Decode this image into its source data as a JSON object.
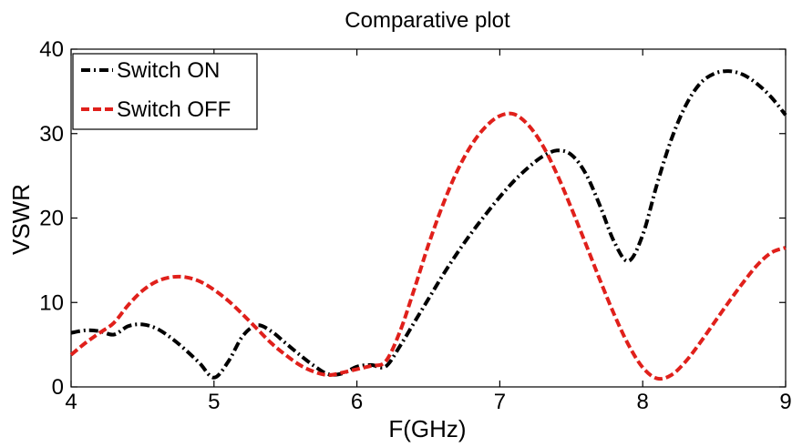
{
  "chart_data": {
    "type": "line",
    "title": "Comparative plot",
    "xlabel": "F(GHz)",
    "ylabel": "VSWR",
    "xlim": [
      4,
      9
    ],
    "ylim": [
      0,
      40
    ],
    "xticks": [
      4,
      5,
      6,
      7,
      8,
      9
    ],
    "yticks": [
      0,
      10,
      20,
      30,
      40
    ],
    "grid": false,
    "legend_position": "top-left",
    "series": [
      {
        "name": "Switch ON",
        "color": "#000000",
        "style": "dash-dot",
        "points": [
          [
            4.0,
            6.4
          ],
          [
            4.1,
            6.7
          ],
          [
            4.2,
            6.6
          ],
          [
            4.3,
            6.2
          ],
          [
            4.4,
            7.2
          ],
          [
            4.5,
            7.4
          ],
          [
            4.6,
            6.9
          ],
          [
            4.7,
            5.8
          ],
          [
            4.8,
            4.4
          ],
          [
            4.9,
            2.8
          ],
          [
            5.0,
            1.1
          ],
          [
            5.1,
            3.0
          ],
          [
            5.2,
            6.0
          ],
          [
            5.3,
            7.3
          ],
          [
            5.4,
            6.6
          ],
          [
            5.5,
            5.2
          ],
          [
            5.6,
            3.8
          ],
          [
            5.7,
            2.5
          ],
          [
            5.8,
            1.5
          ],
          [
            5.9,
            1.6
          ],
          [
            6.0,
            2.4
          ],
          [
            6.1,
            2.6
          ],
          [
            6.2,
            2.4
          ],
          [
            6.3,
            4.8
          ],
          [
            6.4,
            7.6
          ],
          [
            6.5,
            10.4
          ],
          [
            6.6,
            13.2
          ],
          [
            6.7,
            15.8
          ],
          [
            6.8,
            18.2
          ],
          [
            6.9,
            20.4
          ],
          [
            7.0,
            22.5
          ],
          [
            7.1,
            24.4
          ],
          [
            7.2,
            26.0
          ],
          [
            7.3,
            27.3
          ],
          [
            7.4,
            28.0
          ],
          [
            7.5,
            27.5
          ],
          [
            7.6,
            25.3
          ],
          [
            7.7,
            21.5
          ],
          [
            7.8,
            17.2
          ],
          [
            7.9,
            14.9
          ],
          [
            8.0,
            18.0
          ],
          [
            8.1,
            24.0
          ],
          [
            8.2,
            29.3
          ],
          [
            8.3,
            33.3
          ],
          [
            8.4,
            35.9
          ],
          [
            8.5,
            37.1
          ],
          [
            8.6,
            37.4
          ],
          [
            8.7,
            37.0
          ],
          [
            8.8,
            35.9
          ],
          [
            8.9,
            34.3
          ],
          [
            9.0,
            32.2
          ]
        ]
      },
      {
        "name": "Switch OFF",
        "color": "#e0201b",
        "style": "dashed",
        "points": [
          [
            4.0,
            3.8
          ],
          [
            4.1,
            5.2
          ],
          [
            4.2,
            6.4
          ],
          [
            4.3,
            7.6
          ],
          [
            4.4,
            9.7
          ],
          [
            4.5,
            11.4
          ],
          [
            4.6,
            12.5
          ],
          [
            4.7,
            13.0
          ],
          [
            4.8,
            13.0
          ],
          [
            4.9,
            12.5
          ],
          [
            5.0,
            11.5
          ],
          [
            5.1,
            10.2
          ],
          [
            5.2,
            8.6
          ],
          [
            5.3,
            6.9
          ],
          [
            5.4,
            5.2
          ],
          [
            5.5,
            3.8
          ],
          [
            5.6,
            2.6
          ],
          [
            5.7,
            1.8
          ],
          [
            5.8,
            1.4
          ],
          [
            5.9,
            1.7
          ],
          [
            6.0,
            2.1
          ],
          [
            6.1,
            2.5
          ],
          [
            6.2,
            3.0
          ],
          [
            6.3,
            6.5
          ],
          [
            6.4,
            11.5
          ],
          [
            6.5,
            16.8
          ],
          [
            6.6,
            21.5
          ],
          [
            6.7,
            25.5
          ],
          [
            6.8,
            28.6
          ],
          [
            6.9,
            30.8
          ],
          [
            7.0,
            32.1
          ],
          [
            7.1,
            32.3
          ],
          [
            7.2,
            31.0
          ],
          [
            7.3,
            28.6
          ],
          [
            7.4,
            25.2
          ],
          [
            7.5,
            21.2
          ],
          [
            7.6,
            17.0
          ],
          [
            7.7,
            12.7
          ],
          [
            7.8,
            8.6
          ],
          [
            7.9,
            5.0
          ],
          [
            8.0,
            2.3
          ],
          [
            8.1,
            1.0
          ],
          [
            8.2,
            1.4
          ],
          [
            8.3,
            3.0
          ],
          [
            8.4,
            5.2
          ],
          [
            8.5,
            7.6
          ],
          [
            8.6,
            10.0
          ],
          [
            8.7,
            12.3
          ],
          [
            8.8,
            14.4
          ],
          [
            8.9,
            15.9
          ],
          [
            9.0,
            16.5
          ]
        ]
      }
    ]
  }
}
